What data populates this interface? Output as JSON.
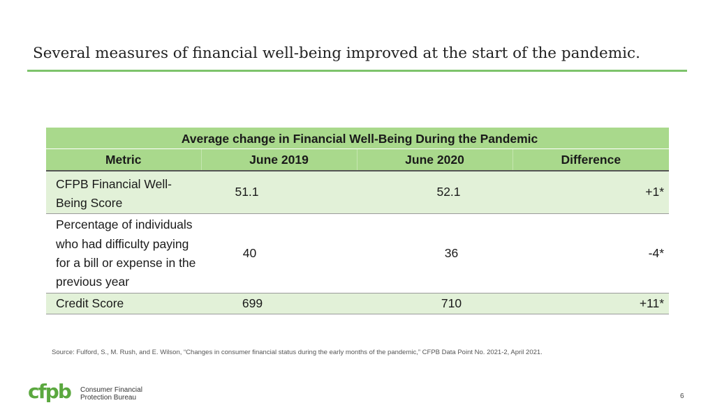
{
  "slide": {
    "title": "Several measures of financial well-being improved at the start of the pandemic.",
    "accent_color": "#7dc36b"
  },
  "table": {
    "caption": "Average change in Financial Well-Being During the Pandemic",
    "headers": [
      "Metric",
      "June 2019",
      "June 2020",
      "Difference"
    ],
    "rows": [
      {
        "metric": "CFPB Financial Well-Being Score",
        "june_2019": "51.1",
        "june_2020": "52.1",
        "difference": "+1*"
      },
      {
        "metric": "Percentage of individuals who had difficulty paying for a bill or expense in the previous year",
        "june_2019": "40",
        "june_2020": "36",
        "difference": "-4*"
      },
      {
        "metric": "Credit Score",
        "june_2019": "699",
        "june_2020": "710",
        "difference": "+11*"
      }
    ],
    "header_color": "#a9d98c",
    "band_color": "#e2f1d8"
  },
  "source": "Source: Fulford, S., M. Rush, and E. Wilson, “Changes in consumer financial status during the early months of the pandemic,” CFPB Data Point No. 2021-2, April 2021.",
  "footer": {
    "logo_mark": "cfpb",
    "logo_line1": "Consumer Financial",
    "logo_line2": "Protection Bureau",
    "page_number": "6",
    "logo_color": "#5ba83f"
  }
}
